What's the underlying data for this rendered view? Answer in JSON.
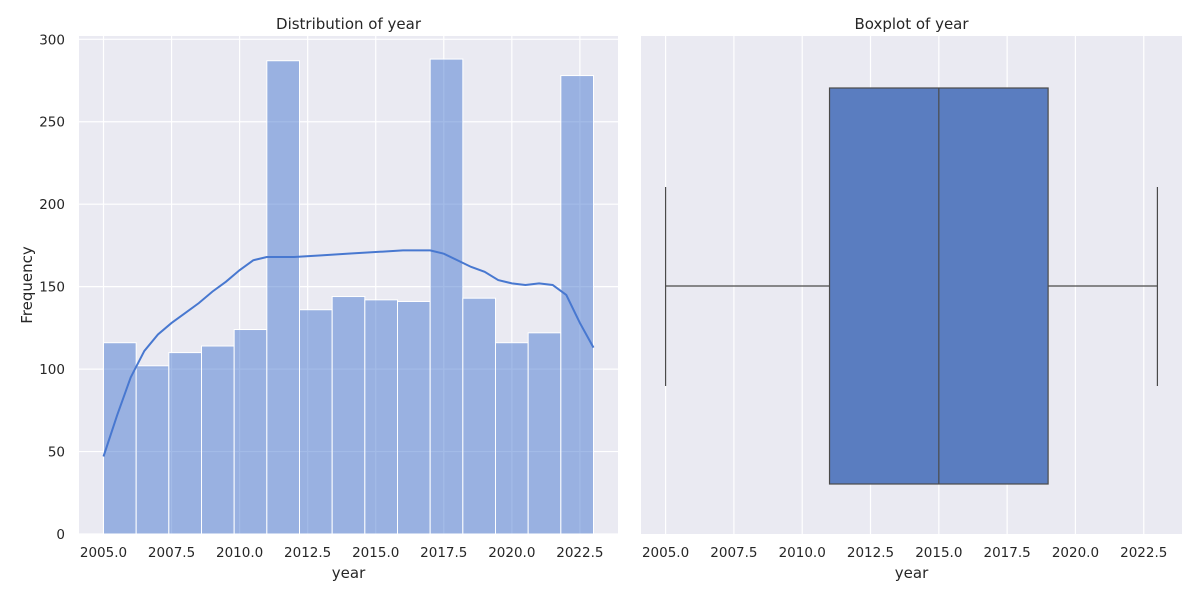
{
  "chart_data": [
    {
      "type": "bar",
      "title": "Distribution of year",
      "xlabel": "year",
      "ylabel": "Frequency",
      "xlim": [
        2004.1,
        2023.9
      ],
      "ylim": [
        0,
        302
      ],
      "xticks": [
        "2005.0",
        "2007.5",
        "2010.0",
        "2012.5",
        "2015.0",
        "2017.5",
        "2020.0",
        "2022.5"
      ],
      "yticks": [
        "0",
        "50",
        "100",
        "150",
        "200",
        "250",
        "300"
      ],
      "grid": true,
      "color": "#4878d0",
      "bins": [
        {
          "start": 2005.0,
          "end": 2006.2,
          "value": 116
        },
        {
          "start": 2006.2,
          "end": 2007.4,
          "value": 102
        },
        {
          "start": 2007.4,
          "end": 2008.6,
          "value": 110
        },
        {
          "start": 2008.6,
          "end": 2009.8,
          "value": 114
        },
        {
          "start": 2009.8,
          "end": 2011.0,
          "value": 124
        },
        {
          "start": 2011.0,
          "end": 2012.2,
          "value": 287
        },
        {
          "start": 2012.2,
          "end": 2013.4,
          "value": 136
        },
        {
          "start": 2013.4,
          "end": 2014.6,
          "value": 144
        },
        {
          "start": 2014.6,
          "end": 2015.8,
          "value": 142
        },
        {
          "start": 2015.8,
          "end": 2017.0,
          "value": 141
        },
        {
          "start": 2017.0,
          "end": 2018.2,
          "value": 288
        },
        {
          "start": 2018.2,
          "end": 2019.4,
          "value": 143
        },
        {
          "start": 2019.4,
          "end": 2020.6,
          "value": 116
        },
        {
          "start": 2020.6,
          "end": 2021.8,
          "value": 122
        },
        {
          "start": 2021.8,
          "end": 2023.0,
          "value": 278
        }
      ],
      "kde": {
        "x": [
          2005.0,
          2005.5,
          2006.0,
          2006.5,
          2007.0,
          2007.5,
          2008.0,
          2008.5,
          2009.0,
          2009.5,
          2010.0,
          2010.5,
          2011.0,
          2011.5,
          2012.0,
          2013.0,
          2014.0,
          2015.0,
          2016.0,
          2016.5,
          2017.0,
          2017.5,
          2018.0,
          2018.5,
          2019.0,
          2019.5,
          2020.0,
          2020.5,
          2021.0,
          2021.5,
          2022.0,
          2022.5,
          2023.0
        ],
        "y": [
          47,
          72,
          95,
          111,
          121,
          128,
          134,
          140,
          147,
          153,
          160,
          166,
          168,
          168,
          168,
          169,
          170,
          171,
          172,
          172,
          172,
          170,
          166,
          162,
          159,
          154,
          152,
          151,
          152,
          151,
          145,
          128,
          113
        ]
      }
    },
    {
      "type": "box",
      "title": "Boxplot of year",
      "xlabel": "year",
      "xlim": [
        2004.1,
        2023.9
      ],
      "xticks": [
        "2005.0",
        "2007.5",
        "2010.0",
        "2012.5",
        "2015.0",
        "2017.5",
        "2020.0",
        "2022.5"
      ],
      "grid": true,
      "color": "#5a7dc0",
      "stats": {
        "min": 2005,
        "q1": 2011,
        "median": 2015,
        "q3": 2019,
        "max": 2023
      }
    }
  ]
}
